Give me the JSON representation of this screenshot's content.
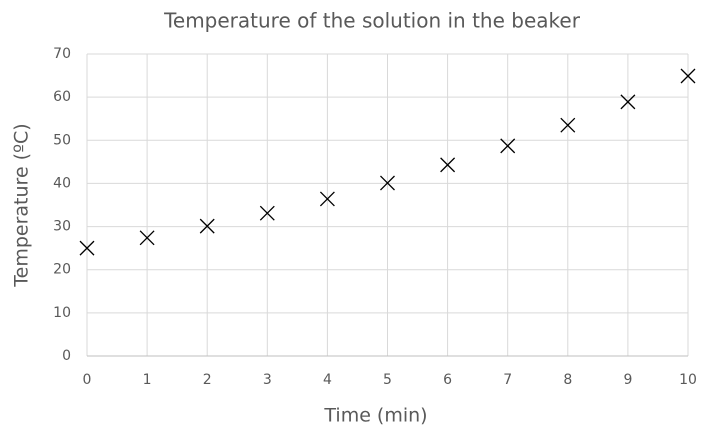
{
  "chart_data": {
    "type": "scatter",
    "title": "Temperature of the solution in the beaker",
    "xlabel": "Time (min)",
    "ylabel": "Temperature (ºC)",
    "x": [
      0,
      1,
      2,
      3,
      4,
      5,
      6,
      7,
      8,
      9,
      10
    ],
    "y": [
      25.0,
      27.4,
      30.1,
      33.1,
      36.4,
      40.1,
      44.3,
      48.7,
      53.5,
      58.9,
      64.9
    ],
    "color": "#000000",
    "grid": true,
    "xlim": [
      0,
      10
    ],
    "xticks": [
      0,
      1,
      2,
      3,
      4,
      5,
      6,
      7,
      8,
      9,
      10
    ],
    "ylim": [
      0,
      70
    ],
    "yticks": [
      0,
      10,
      20,
      30,
      40,
      50,
      60,
      70
    ]
  }
}
